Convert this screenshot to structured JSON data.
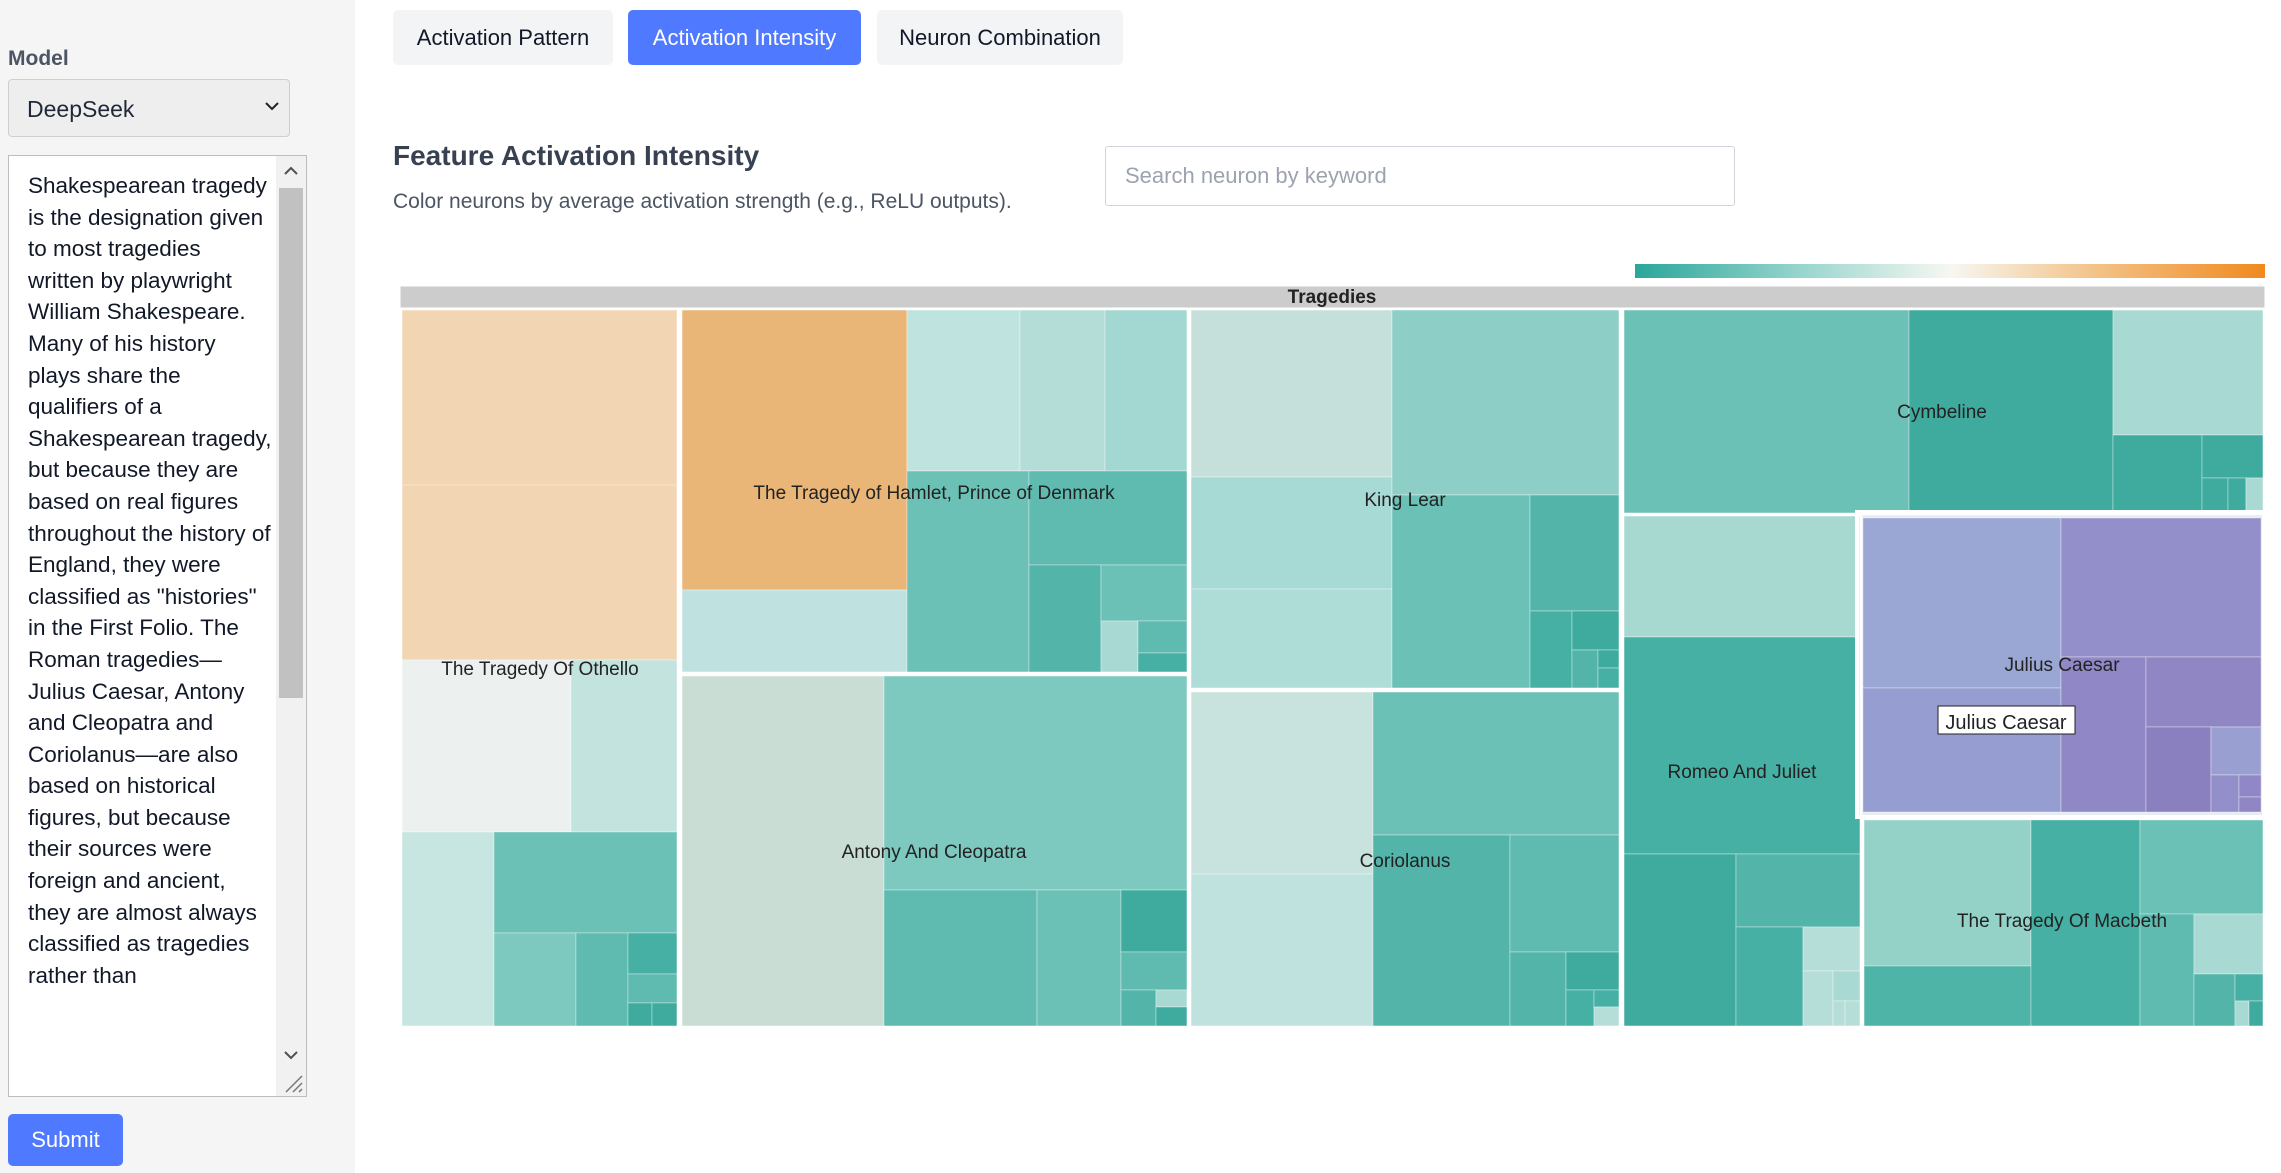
{
  "sidebar": {
    "model_label": "Model",
    "model_value": "DeepSeek",
    "text": "Shakespearean tragedy is the designation given to most tragedies written by playwright William Shakespeare. Many of his history plays share the qualifiers of a Shakespearean tragedy, but because they are based on real figures throughout the history of England, they were classified as \"histories\" in the First Folio. The Roman tragedies—Julius Caesar, Antony and Cleopatra and Coriolanus—are also based on historical figures, but because their sources were foreign and ancient, they are almost always classified as tragedies rather than",
    "submit_label": "Submit"
  },
  "tabs": [
    {
      "label": "Activation Pattern",
      "active": false
    },
    {
      "label": "Activation Intensity",
      "active": true
    },
    {
      "label": "Neuron Combination",
      "active": false
    }
  ],
  "section": {
    "title": "Feature Activation Intensity",
    "description": "Color neurons by average activation strength (e.g., ReLU outputs)."
  },
  "search": {
    "placeholder": "Search neuron by keyword",
    "value": ""
  },
  "legend": {
    "low_color": "#2aa69a",
    "mid_color": "#f7f7f2",
    "high_color": "#f0891e"
  },
  "treemap": {
    "root_label": "Tragedies",
    "hover_tooltip": "Julius Caesar",
    "highlight_color": "#8e8fd0",
    "groups": [
      {
        "name": "The Tragedy Of Othello"
      },
      {
        "name": "The Tragedy of Hamlet, Prince of Denmark"
      },
      {
        "name": "Antony And Cleopatra"
      },
      {
        "name": "King Lear"
      },
      {
        "name": "Coriolanus"
      },
      {
        "name": "Cymbeline"
      },
      {
        "name": "Romeo And Juliet"
      },
      {
        "name": "Julius Caesar"
      },
      {
        "name": "The Tragedy Of Macbeth"
      }
    ]
  }
}
